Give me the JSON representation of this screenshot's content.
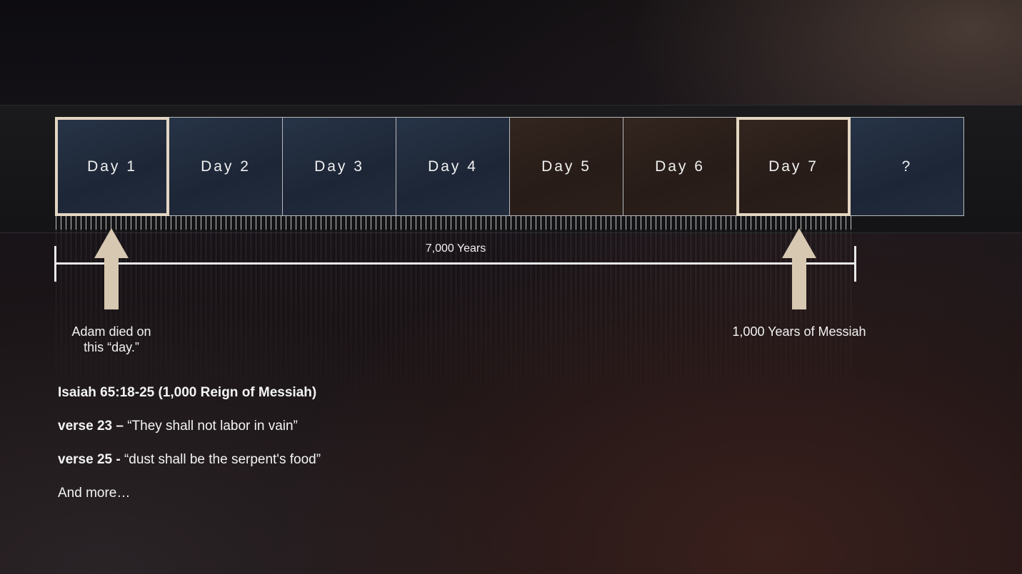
{
  "days": [
    {
      "label": "Day 1",
      "tone": "blue",
      "highlighted": true
    },
    {
      "label": "Day 2",
      "tone": "blue",
      "highlighted": false
    },
    {
      "label": "Day 3",
      "tone": "blue",
      "highlighted": false
    },
    {
      "label": "Day 4",
      "tone": "blue",
      "highlighted": false
    },
    {
      "label": "Day 5",
      "tone": "brown",
      "highlighted": false
    },
    {
      "label": "Day 6",
      "tone": "brown",
      "highlighted": false
    },
    {
      "label": "Day 7",
      "tone": "brown",
      "highlighted": true
    },
    {
      "label": "?",
      "tone": "blue",
      "highlighted": false
    }
  ],
  "scale": {
    "label": "7,000 Years"
  },
  "markers": {
    "left": {
      "line1": "Adam died on",
      "line2": "this “day.”"
    },
    "right": {
      "line1": "1,000 Years of Messiah"
    }
  },
  "notes": {
    "heading": "Isaiah 65:18-25 (1,000 Reign of Messiah)",
    "verse23_ref": "verse 23 –",
    "verse23_text": " “They shall not labor in vain”",
    "verse25_ref": "verse 25 -",
    "verse25_text": " “dust shall be the serpent's food”",
    "more": "And more…"
  },
  "colors": {
    "accent": "#d7c8b1",
    "highlight_border": "#e3d6c2"
  }
}
